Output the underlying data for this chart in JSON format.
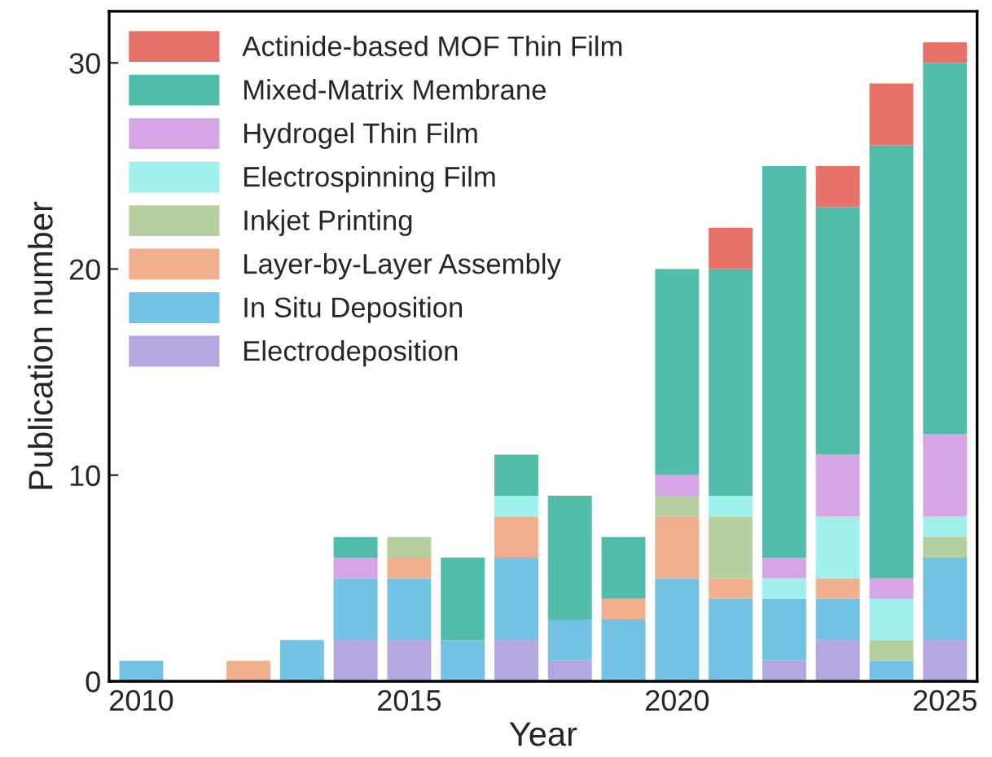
{
  "chart_data": {
    "type": "bar",
    "stacked": true,
    "xlabel": "Year",
    "ylabel": "Publication number",
    "x": [
      2010,
      2011,
      2012,
      2013,
      2014,
      2015,
      2016,
      2017,
      2018,
      2019,
      2020,
      2021,
      2022,
      2023,
      2024,
      2025
    ],
    "xlim": [
      2009.4,
      2025.6
    ],
    "xticks": [
      2010,
      2015,
      2020,
      2025
    ],
    "ylim": [
      0,
      32.5
    ],
    "yticks": [
      0,
      10,
      20,
      30
    ],
    "grid": false,
    "legend": "top left",
    "series": [
      {
        "name": "Electrodeposition",
        "color": "#b4a7e0",
        "values": [
          0,
          0,
          0,
          0,
          2,
          2,
          0,
          2,
          1,
          0,
          0,
          0,
          1,
          2,
          0,
          2
        ]
      },
      {
        "name": "In Situ Deposition",
        "color": "#74c2e3",
        "values": [
          1,
          0,
          0,
          2,
          3,
          3,
          2,
          4,
          2,
          3,
          5,
          4,
          3,
          2,
          1,
          4
        ]
      },
      {
        "name": "Layer-by-Layer Assembly",
        "color": "#f0b08e",
        "values": [
          0,
          0,
          1,
          0,
          0,
          1,
          0,
          2,
          0,
          1,
          3,
          1,
          0,
          1,
          0,
          0
        ]
      },
      {
        "name": "Inkjet Printing",
        "color": "#b5cf9e",
        "values": [
          0,
          0,
          0,
          0,
          0,
          1,
          0,
          0,
          0,
          0,
          1,
          3,
          0,
          0,
          1,
          1
        ]
      },
      {
        "name": "Electrospinning Film",
        "color": "#9ff0ec",
        "values": [
          0,
          0,
          0,
          0,
          0,
          0,
          0,
          1,
          0,
          0,
          0,
          1,
          1,
          3,
          2,
          1
        ]
      },
      {
        "name": "Hydrogel Thin Film",
        "color": "#d7a5e6",
        "values": [
          0,
          0,
          0,
          0,
          1,
          0,
          0,
          0,
          0,
          0,
          1,
          0,
          1,
          3,
          1,
          4
        ]
      },
      {
        "name": "Mixed-Matrix Membrane",
        "color": "#50bca9",
        "values": [
          0,
          0,
          0,
          0,
          1,
          0,
          4,
          2,
          6,
          3,
          10,
          11,
          19,
          12,
          21,
          18
        ]
      },
      {
        "name": "Actinide-based MOF Thin Film",
        "color": "#e8716a",
        "values": [
          0,
          0,
          0,
          0,
          0,
          0,
          0,
          0,
          0,
          0,
          0,
          2,
          0,
          2,
          3,
          1
        ]
      }
    ]
  }
}
